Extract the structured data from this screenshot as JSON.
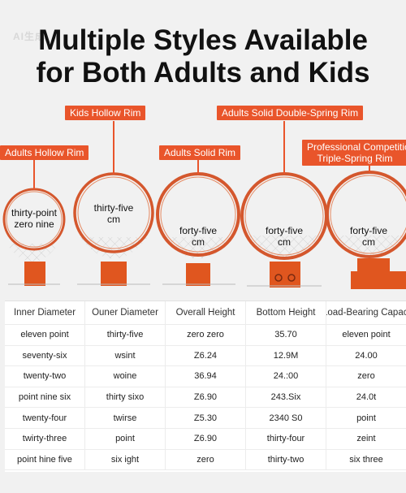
{
  "watermark": "AI生成",
  "headline": {
    "line1": "Multiple Styles Available",
    "line2": "for Both Adults and Kids"
  },
  "callouts": {
    "kids_hollow": "Kids Hollow Rim",
    "adults_solid_double": "Adults Solid Double-Spring Rim",
    "adults_hollow": "Adults Hollow Rim",
    "adults_solid": "Adults Solid Rim",
    "professional_line1": "Professional Competition",
    "professional_line2": "Triple-Spring Rim"
  },
  "rims": [
    {
      "line1": "thirty-point",
      "line2": "zero nine"
    },
    {
      "line1": "thirty-five",
      "line2": "cm"
    },
    {
      "line1": "forty-five",
      "line2": "cm"
    },
    {
      "line1": "forty-five",
      "line2": "cm"
    },
    {
      "line1": "forty-five",
      "line2": "cm"
    }
  ],
  "colors": {
    "accent": "#e9552b",
    "rim": "#d4572d",
    "bracket": "#e0561f"
  },
  "table": {
    "headers": [
      "Inner Diameter",
      "Ouner Diameter",
      "Overall Height",
      "Bottom Height",
      "Load-Bearing Capaci"
    ],
    "rows": [
      [
        "eleven point",
        "thirty-five",
        "zero zero",
        "35.70",
        "eleven point"
      ],
      [
        "seventy-six",
        "wsint",
        "Z6.24",
        "12.9M",
        "24.00"
      ],
      [
        "twenty-two",
        "woine",
        "36.94",
        "24.:00",
        "zero"
      ],
      [
        "point nine six",
        "thirty sixo",
        "Z6.90",
        "243.Six",
        "24.0t"
      ],
      [
        "twenty-four",
        "twirse",
        "Z5.30",
        "2340 S0",
        "point"
      ],
      [
        "twirty-three",
        "point",
        "Z6.90",
        "thirty-four",
        "zeint"
      ],
      [
        "point hine five",
        "six ight",
        "zero",
        "thirty-two",
        "six three"
      ]
    ]
  }
}
